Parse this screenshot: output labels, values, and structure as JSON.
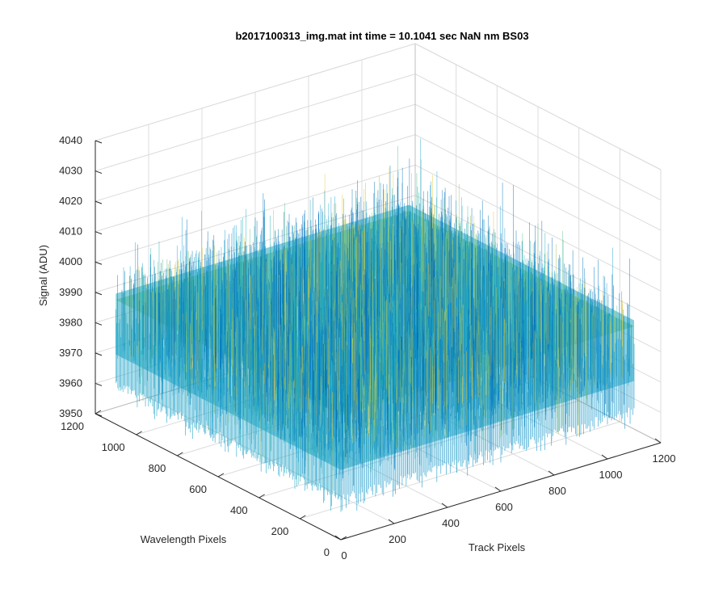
{
  "chart_data": {
    "type": "surface",
    "title": "b2017100313_img.mat int time = 10.1041 sec  NaN nm BS03",
    "xlabel": "Track Pixels",
    "ylabel": "Wavelength Pixels",
    "zlabel": "Signal (ADU)",
    "xlim": [
      0,
      1200
    ],
    "ylim": [
      0,
      1200
    ],
    "zlim": [
      3950,
      4040
    ],
    "x_ticks": [
      "0",
      "200",
      "400",
      "600",
      "800",
      "1000",
      "1200"
    ],
    "y_ticks": [
      "0",
      "200",
      "400",
      "600",
      "800",
      "1000",
      "1200"
    ],
    "z_ticks": [
      "3950",
      "3960",
      "3970",
      "3980",
      "3990",
      "4000",
      "4010",
      "4020",
      "4030",
      "4040"
    ],
    "data_extent": {
      "x": [
        0,
        1100
      ],
      "y": [
        0,
        1100
      ]
    },
    "z_mean": 3985,
    "z_spread": [
      3960,
      4035
    ],
    "grid": true,
    "view": "3d",
    "colormap": [
      "#0072bd",
      "#1a9fd4",
      "#22b0b4",
      "#5bbf8e",
      "#a6c45a",
      "#e3c739"
    ]
  }
}
